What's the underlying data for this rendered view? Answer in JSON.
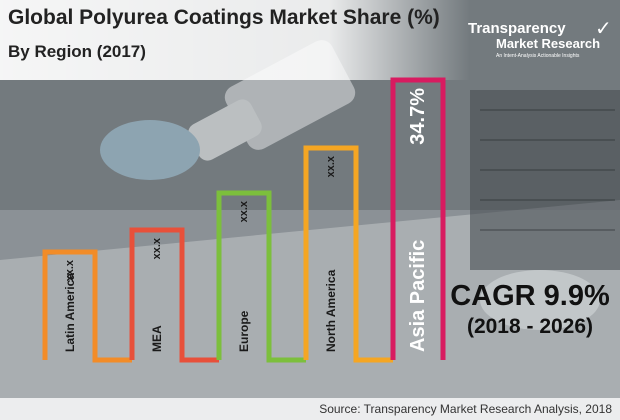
{
  "title": "Global Polyurea Coatings Market Share (%)",
  "subtitle": "By Region (2017)",
  "logo": {
    "line1": "Transparency",
    "line2": "Market Research",
    "tagline": "An Intent-Analysis Actionable Insights"
  },
  "cagr": {
    "label": "CAGR 9.9%",
    "range": "(2018 - 2026)"
  },
  "source": "Source: Transparency Market Research Analysis, 2018",
  "chart_data": {
    "type": "bar",
    "categories": [
      "Latin America",
      "MEA",
      "Europe",
      "North America",
      "Asia Pacific"
    ],
    "values": [
      null,
      null,
      null,
      null,
      34.7
    ],
    "data_labels": [
      "xx.x",
      "xx.x",
      "xx.x",
      "xx.x",
      "34.7%"
    ],
    "colors": [
      "#f28c28",
      "#e8503a",
      "#7cbf3c",
      "#f5a623",
      "#d81b60"
    ],
    "xlabel": "",
    "ylabel": "",
    "grid": false,
    "legend": "none"
  }
}
